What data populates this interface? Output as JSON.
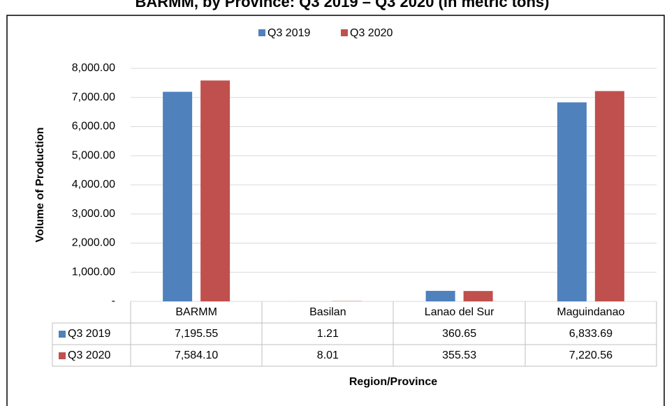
{
  "chart_data": {
    "type": "bar",
    "title": "BARMM, by Province: Q3 2019 – Q3 2020 (in metric tons)",
    "x_label": "Region/Province",
    "y_label": "Volume of Production",
    "categories": [
      "BARMM",
      "Basilan",
      "Lanao del Sur",
      "Maguindanao"
    ],
    "series": [
      {
        "name": "Q3 2019",
        "color": "#4f81bd",
        "values": [
          7195.55,
          1.21,
          360.65,
          6833.69
        ],
        "value_labels": [
          "7,195.55",
          "1.21",
          "360.65",
          "6,833.69"
        ]
      },
      {
        "name": "Q3 2020",
        "color": "#c0504d",
        "values": [
          7584.1,
          8.01,
          355.53,
          7220.56
        ],
        "value_labels": [
          "7,584.10",
          "8.01",
          "355.53",
          "7,220.56"
        ]
      }
    ],
    "ylim": [
      0,
      8000
    ],
    "yticks": [
      {
        "value": 0,
        "label": "-"
      },
      {
        "value": 1000,
        "label": "1,000.00"
      },
      {
        "value": 2000,
        "label": "2,000.00"
      },
      {
        "value": 3000,
        "label": "3,000.00"
      },
      {
        "value": 4000,
        "label": "4,000.00"
      },
      {
        "value": 5000,
        "label": "5,000.00"
      },
      {
        "value": 6000,
        "label": "6,000.00"
      },
      {
        "value": 7000,
        "label": "7,000.00"
      },
      {
        "value": 8000,
        "label": "8,000.00"
      }
    ],
    "grid": true,
    "legend": "top"
  }
}
